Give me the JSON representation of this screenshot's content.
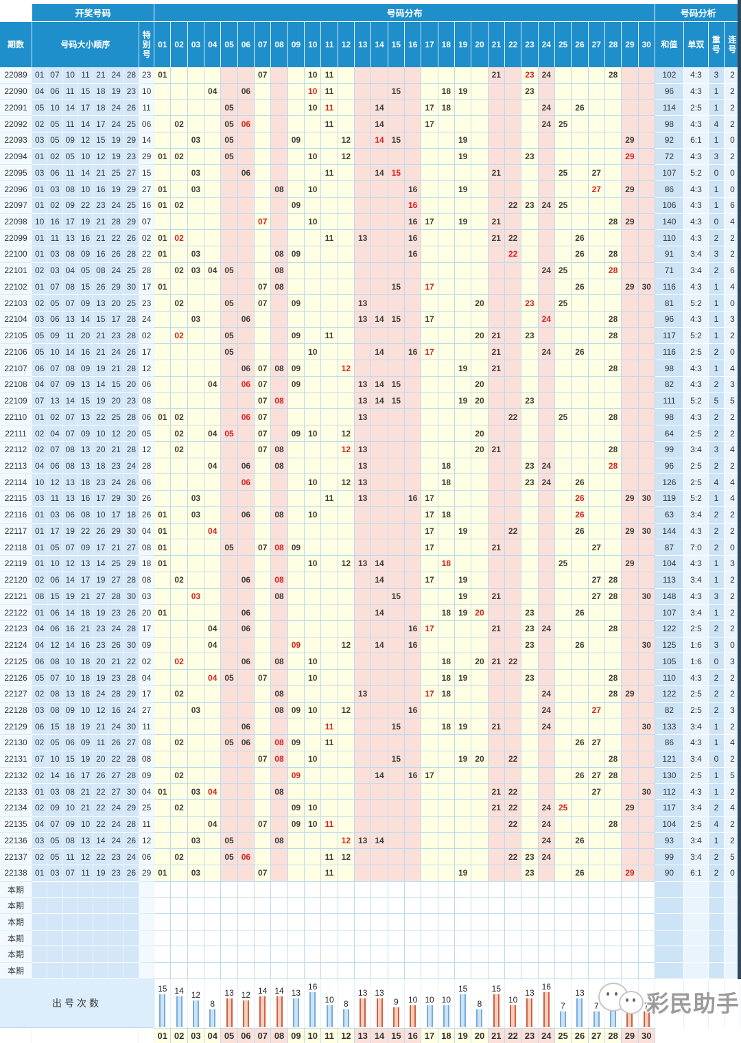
{
  "header": {
    "group_left": "开奖号码",
    "group_mid": "号码分布",
    "group_right": "号码分析",
    "col_period": "期数",
    "col_numbers": "号码大小顺序",
    "col_special": "特别号",
    "col_sum": "和值",
    "col_oddeven": "单双",
    "col_repeat": "重号",
    "col_consec": "连号"
  },
  "columns": [
    "01",
    "02",
    "03",
    "04",
    "05",
    "06",
    "07",
    "08",
    "09",
    "10",
    "11",
    "12",
    "13",
    "14",
    "15",
    "16",
    "17",
    "18",
    "19",
    "20",
    "21",
    "22",
    "23",
    "24",
    "25",
    "26",
    "27",
    "28",
    "29",
    "30"
  ],
  "zones": {
    "body_pink_columns": [
      5,
      6,
      8,
      13,
      14,
      15,
      16,
      21,
      22,
      24,
      29,
      30
    ],
    "cream_color": "#FFFFE3",
    "pink_color": "#FBE0DA",
    "header_blue": "#1E8FCB",
    "special_red": "#D42222"
  },
  "rows": [
    {
      "period": "22089",
      "nums": [
        "01",
        "07",
        "10",
        "11",
        "21",
        "24",
        "28"
      ],
      "special": "23",
      "sum": "102",
      "odd_even": "4:3",
      "repeat": "3",
      "consec": "2"
    },
    {
      "period": "22090",
      "nums": [
        "04",
        "06",
        "11",
        "15",
        "18",
        "19",
        "23"
      ],
      "special": "10",
      "sum": "96",
      "odd_even": "4:3",
      "repeat": "1",
      "consec": "2"
    },
    {
      "period": "22091",
      "nums": [
        "05",
        "10",
        "14",
        "17",
        "18",
        "24",
        "26"
      ],
      "special": "11",
      "sum": "114",
      "odd_even": "2:5",
      "repeat": "1",
      "consec": "2"
    },
    {
      "period": "22092",
      "nums": [
        "02",
        "05",
        "11",
        "14",
        "17",
        "24",
        "25"
      ],
      "special": "06",
      "sum": "98",
      "odd_even": "4:3",
      "repeat": "4",
      "consec": "2"
    },
    {
      "period": "22093",
      "nums": [
        "03",
        "05",
        "09",
        "12",
        "15",
        "19",
        "29"
      ],
      "special": "14",
      "sum": "92",
      "odd_even": "6:1",
      "repeat": "1",
      "consec": "0"
    },
    {
      "period": "22094",
      "nums": [
        "01",
        "02",
        "05",
        "10",
        "12",
        "19",
        "23"
      ],
      "special": "29",
      "sum": "72",
      "odd_even": "4:3",
      "repeat": "3",
      "consec": "2"
    },
    {
      "period": "22095",
      "nums": [
        "03",
        "06",
        "11",
        "14",
        "21",
        "25",
        "27"
      ],
      "special": "15",
      "sum": "107",
      "odd_even": "5:2",
      "repeat": "0",
      "consec": "0"
    },
    {
      "period": "22096",
      "nums": [
        "01",
        "03",
        "08",
        "10",
        "16",
        "19",
        "29"
      ],
      "special": "27",
      "sum": "86",
      "odd_even": "4:3",
      "repeat": "1",
      "consec": "0"
    },
    {
      "period": "22097",
      "nums": [
        "01",
        "02",
        "09",
        "22",
        "23",
        "24",
        "25"
      ],
      "special": "16",
      "sum": "106",
      "odd_even": "4:3",
      "repeat": "1",
      "consec": "6"
    },
    {
      "period": "22098",
      "nums": [
        "10",
        "16",
        "17",
        "19",
        "21",
        "28",
        "29"
      ],
      "special": "07",
      "sum": "140",
      "odd_even": "4:3",
      "repeat": "0",
      "consec": "4"
    },
    {
      "period": "22099",
      "nums": [
        "01",
        "11",
        "13",
        "16",
        "21",
        "22",
        "26"
      ],
      "special": "02",
      "sum": "110",
      "odd_even": "4:3",
      "repeat": "2",
      "consec": "2"
    },
    {
      "period": "22100",
      "nums": [
        "01",
        "03",
        "08",
        "09",
        "16",
        "26",
        "28"
      ],
      "special": "22",
      "sum": "91",
      "odd_even": "3:4",
      "repeat": "3",
      "consec": "2"
    },
    {
      "period": "22101",
      "nums": [
        "02",
        "03",
        "04",
        "05",
        "08",
        "24",
        "25"
      ],
      "special": "28",
      "sum": "71",
      "odd_even": "3:4",
      "repeat": "2",
      "consec": "6"
    },
    {
      "period": "22102",
      "nums": [
        "01",
        "07",
        "08",
        "15",
        "26",
        "29",
        "30"
      ],
      "special": "17",
      "sum": "116",
      "odd_even": "4:3",
      "repeat": "1",
      "consec": "4"
    },
    {
      "period": "22103",
      "nums": [
        "02",
        "05",
        "07",
        "09",
        "13",
        "20",
        "25"
      ],
      "special": "23",
      "sum": "81",
      "odd_even": "5:2",
      "repeat": "1",
      "consec": "0"
    },
    {
      "period": "22104",
      "nums": [
        "03",
        "06",
        "13",
        "14",
        "15",
        "17",
        "28"
      ],
      "special": "24",
      "sum": "96",
      "odd_even": "4:3",
      "repeat": "1",
      "consec": "3"
    },
    {
      "period": "22105",
      "nums": [
        "05",
        "09",
        "11",
        "20",
        "21",
        "23",
        "28"
      ],
      "special": "02",
      "sum": "117",
      "odd_even": "5:2",
      "repeat": "1",
      "consec": "2"
    },
    {
      "period": "22106",
      "nums": [
        "05",
        "10",
        "14",
        "16",
        "21",
        "24",
        "26"
      ],
      "special": "17",
      "sum": "116",
      "odd_even": "2:5",
      "repeat": "2",
      "consec": "0"
    },
    {
      "period": "22107",
      "nums": [
        "06",
        "07",
        "08",
        "09",
        "19",
        "21",
        "28"
      ],
      "special": "12",
      "sum": "98",
      "odd_even": "4:3",
      "repeat": "1",
      "consec": "4"
    },
    {
      "period": "22108",
      "nums": [
        "04",
        "07",
        "09",
        "13",
        "14",
        "15",
        "20"
      ],
      "special": "06",
      "sum": "82",
      "odd_even": "4:3",
      "repeat": "2",
      "consec": "3"
    },
    {
      "period": "22109",
      "nums": [
        "07",
        "13",
        "14",
        "15",
        "19",
        "20",
        "23"
      ],
      "special": "08",
      "sum": "111",
      "odd_even": "5:2",
      "repeat": "5",
      "consec": "5"
    },
    {
      "period": "22110",
      "nums": [
        "01",
        "02",
        "07",
        "13",
        "22",
        "25",
        "28"
      ],
      "special": "06",
      "sum": "98",
      "odd_even": "4:3",
      "repeat": "2",
      "consec": "2"
    },
    {
      "period": "22111",
      "nums": [
        "02",
        "04",
        "07",
        "09",
        "10",
        "12",
        "20"
      ],
      "special": "05",
      "sum": "64",
      "odd_even": "2:5",
      "repeat": "2",
      "consec": "2"
    },
    {
      "period": "22112",
      "nums": [
        "02",
        "07",
        "08",
        "13",
        "20",
        "21",
        "28"
      ],
      "special": "12",
      "sum": "99",
      "odd_even": "3:4",
      "repeat": "3",
      "consec": "4"
    },
    {
      "period": "22113",
      "nums": [
        "04",
        "06",
        "08",
        "13",
        "18",
        "23",
        "24"
      ],
      "special": "28",
      "sum": "96",
      "odd_even": "2:5",
      "repeat": "2",
      "consec": "2"
    },
    {
      "period": "22114",
      "nums": [
        "10",
        "12",
        "13",
        "18",
        "23",
        "24",
        "26"
      ],
      "special": "06",
      "sum": "126",
      "odd_even": "2:5",
      "repeat": "4",
      "consec": "4"
    },
    {
      "period": "22115",
      "nums": [
        "03",
        "11",
        "13",
        "16",
        "17",
        "29",
        "30"
      ],
      "special": "26",
      "sum": "119",
      "odd_even": "5:2",
      "repeat": "1",
      "consec": "4"
    },
    {
      "period": "22116",
      "nums": [
        "01",
        "03",
        "06",
        "08",
        "10",
        "17",
        "18"
      ],
      "special": "26",
      "sum": "63",
      "odd_even": "3:4",
      "repeat": "2",
      "consec": "2"
    },
    {
      "period": "22117",
      "nums": [
        "01",
        "17",
        "19",
        "22",
        "26",
        "29",
        "30"
      ],
      "special": "04",
      "sum": "144",
      "odd_even": "4:3",
      "repeat": "2",
      "consec": "2"
    },
    {
      "period": "22118",
      "nums": [
        "01",
        "05",
        "07",
        "09",
        "17",
        "21",
        "27"
      ],
      "special": "08",
      "sum": "87",
      "odd_even": "7:0",
      "repeat": "2",
      "consec": "0"
    },
    {
      "period": "22119",
      "nums": [
        "01",
        "10",
        "12",
        "13",
        "14",
        "25",
        "29"
      ],
      "special": "18",
      "sum": "104",
      "odd_even": "4:3",
      "repeat": "1",
      "consec": "3"
    },
    {
      "period": "22120",
      "nums": [
        "02",
        "06",
        "14",
        "17",
        "19",
        "27",
        "28"
      ],
      "special": "08",
      "sum": "113",
      "odd_even": "3:4",
      "repeat": "1",
      "consec": "2"
    },
    {
      "period": "22121",
      "nums": [
        "08",
        "15",
        "19",
        "21",
        "27",
        "28",
        "30"
      ],
      "special": "03",
      "sum": "148",
      "odd_even": "4:3",
      "repeat": "3",
      "consec": "2"
    },
    {
      "period": "22122",
      "nums": [
        "01",
        "06",
        "14",
        "18",
        "19",
        "23",
        "26"
      ],
      "special": "20",
      "sum": "107",
      "odd_even": "3:4",
      "repeat": "1",
      "consec": "2"
    },
    {
      "period": "22123",
      "nums": [
        "04",
        "06",
        "16",
        "21",
        "23",
        "24",
        "28"
      ],
      "special": "17",
      "sum": "122",
      "odd_even": "2:5",
      "repeat": "2",
      "consec": "2"
    },
    {
      "period": "22124",
      "nums": [
        "04",
        "12",
        "14",
        "16",
        "23",
        "26",
        "30"
      ],
      "special": "09",
      "sum": "125",
      "odd_even": "1:6",
      "repeat": "3",
      "consec": "0"
    },
    {
      "period": "22125",
      "nums": [
        "06",
        "08",
        "10",
        "18",
        "20",
        "21",
        "22"
      ],
      "special": "02",
      "sum": "105",
      "odd_even": "1:6",
      "repeat": "0",
      "consec": "3"
    },
    {
      "period": "22126",
      "nums": [
        "05",
        "07",
        "10",
        "18",
        "19",
        "23",
        "28"
      ],
      "special": "04",
      "sum": "110",
      "odd_even": "4:3",
      "repeat": "2",
      "consec": "2"
    },
    {
      "period": "22127",
      "nums": [
        "02",
        "08",
        "13",
        "18",
        "24",
        "28",
        "29"
      ],
      "special": "17",
      "sum": "122",
      "odd_even": "2:5",
      "repeat": "2",
      "consec": "2"
    },
    {
      "period": "22128",
      "nums": [
        "03",
        "08",
        "09",
        "10",
        "12",
        "16",
        "24"
      ],
      "special": "27",
      "sum": "82",
      "odd_even": "2:5",
      "repeat": "2",
      "consec": "3"
    },
    {
      "period": "22129",
      "nums": [
        "06",
        "15",
        "18",
        "19",
        "21",
        "24",
        "30"
      ],
      "special": "11",
      "sum": "133",
      "odd_even": "3:4",
      "repeat": "1",
      "consec": "2"
    },
    {
      "period": "22130",
      "nums": [
        "02",
        "05",
        "06",
        "09",
        "11",
        "26",
        "27"
      ],
      "special": "08",
      "sum": "86",
      "odd_even": "4:3",
      "repeat": "1",
      "consec": "4"
    },
    {
      "period": "22131",
      "nums": [
        "07",
        "10",
        "15",
        "19",
        "20",
        "22",
        "28"
      ],
      "special": "08",
      "sum": "121",
      "odd_even": "3:4",
      "repeat": "0",
      "consec": "2"
    },
    {
      "period": "22132",
      "nums": [
        "02",
        "14",
        "16",
        "17",
        "26",
        "27",
        "28"
      ],
      "special": "09",
      "sum": "130",
      "odd_even": "2:5",
      "repeat": "1",
      "consec": "5"
    },
    {
      "period": "22133",
      "nums": [
        "01",
        "03",
        "08",
        "21",
        "22",
        "27",
        "30"
      ],
      "special": "04",
      "sum": "112",
      "odd_even": "4:3",
      "repeat": "1",
      "consec": "2"
    },
    {
      "period": "22134",
      "nums": [
        "02",
        "09",
        "10",
        "21",
        "22",
        "24",
        "29"
      ],
      "special": "25",
      "sum": "117",
      "odd_even": "3:4",
      "repeat": "2",
      "consec": "4"
    },
    {
      "period": "22135",
      "nums": [
        "04",
        "07",
        "09",
        "10",
        "22",
        "24",
        "28"
      ],
      "special": "11",
      "sum": "104",
      "odd_even": "2:5",
      "repeat": "4",
      "consec": "2"
    },
    {
      "period": "22136",
      "nums": [
        "03",
        "05",
        "08",
        "13",
        "14",
        "24",
        "26"
      ],
      "special": "12",
      "sum": "93",
      "odd_even": "3:4",
      "repeat": "1",
      "consec": "2"
    },
    {
      "period": "22137",
      "nums": [
        "02",
        "05",
        "11",
        "12",
        "22",
        "23",
        "24"
      ],
      "special": "06",
      "sum": "99",
      "odd_even": "3:4",
      "repeat": "2",
      "consec": "5"
    },
    {
      "period": "22138",
      "nums": [
        "01",
        "03",
        "07",
        "11",
        "19",
        "23",
        "26"
      ],
      "special": "29",
      "sum": "90",
      "odd_even": "6:1",
      "repeat": "2",
      "consec": "0"
    }
  ],
  "pending": {
    "label": "本期",
    "count": 6
  },
  "frequency": {
    "label": "出号次数",
    "counts": [
      15,
      14,
      12,
      8,
      13,
      12,
      14,
      14,
      13,
      16,
      10,
      8,
      13,
      13,
      9,
      10,
      10,
      10,
      15,
      8,
      15,
      10,
      13,
      16,
      7,
      13,
      7,
      16,
      9,
      7
    ],
    "bar_blue": "#76ACDF",
    "bar_red": "#D2603E"
  },
  "watermark": {
    "text": "彩民助手"
  }
}
